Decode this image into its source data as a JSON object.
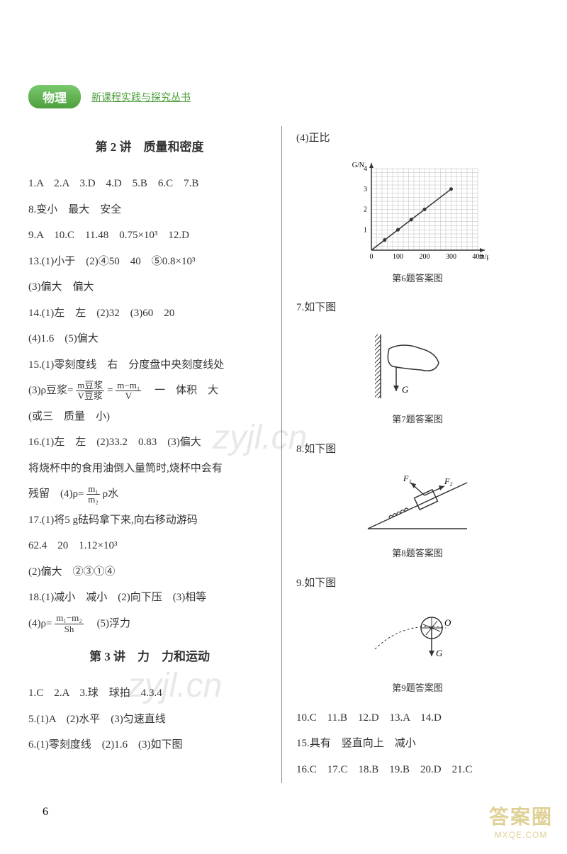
{
  "header": {
    "subject": "物理",
    "series": "新课程实践与探究丛书"
  },
  "left": {
    "section2_title": "第 2 讲　质量和密度",
    "l1": "1.A　2.A　3.D　4.D　5.B　6.C　7.B",
    "l2": "8.变小　最大　安全",
    "l3": "9.A　10.C　11.48　0.75×10³　12.D",
    "l4": "13.(1)小于　(2)④50　40　⑤0.8×10³",
    "l5": "(3)偏大　偏大",
    "l6": "14.(1)左　左　(2)32　(3)60　20",
    "l7": "(4)1.6　(5)偏大",
    "l8": "15.(1)零刻度线　右　分度盘中央刻度线处",
    "l9a": "(3)ρ豆浆=",
    "frac1_num": "m豆浆",
    "frac1_den": "V豆浆",
    "l9b": "=",
    "frac2_num": "m−m₁",
    "frac2_den": "V",
    "l9c": "　一　体积　大",
    "l10": "(或三　质量　小)",
    "l11": "16.(1)左　左　(2)33.2　0.83　(3)偏大",
    "l12": "将烧杯中的食用油倒入量筒时,烧杯中会有",
    "l13a": "残留　(4)ρ=",
    "frac3_num": "m₁",
    "frac3_den": "m₂",
    "l13b": "ρ水",
    "l14": "17.(1)将5 g砝码拿下来,向右移动游码",
    "l15": "62.4　20　1.12×10³",
    "l16": "(2)偏大　②③①④",
    "l17": "18.(1)减小　减小　(2)向下压　(3)相等",
    "l18a": "(4)ρ=",
    "frac4_num": "m₁−m₂",
    "frac4_den": "Sh",
    "l18b": "　(5)浮力",
    "section3_title": "第 3 讲　力　力和运动",
    "l19": "1.C　2.A　3.球　球拍　4.3.4",
    "l20": "5.(1)A　(2)水平　(3)匀速直线",
    "l21": "6.(1)零刻度线　(2)1.6　(3)如下图"
  },
  "right": {
    "r1": "(4)正比",
    "fig6_caption": "第6题答案图",
    "r2": "7.如下图",
    "fig7_caption": "第7题答案图",
    "r3": "8.如下图",
    "fig8_caption": "第8题答案图",
    "r4": "9.如下图",
    "fig9_caption": "第9题答案图",
    "r5": "10.C　11.B　12.D　13.A　14.D",
    "r6": "15.具有　竖直向上　减小",
    "r7": "16.C　17.C　18.B　19.B　20.D　21.C"
  },
  "chart6": {
    "x_label": "m/g",
    "y_label": "G/N",
    "x_ticks": [
      "0",
      "100",
      "200",
      "300",
      "400"
    ],
    "y_ticks": [
      "1",
      "2",
      "3",
      "4"
    ],
    "points": [
      [
        50,
        0.5
      ],
      [
        100,
        1
      ],
      [
        150,
        1.5
      ],
      [
        200,
        2
      ],
      [
        300,
        3
      ]
    ],
    "colors": {
      "line": "#333333",
      "grid": "#bbbbbb",
      "axis": "#333333"
    }
  },
  "page_number": "6",
  "watermark": {
    "logo": "答案圈",
    "url": "MXQE.COM",
    "mid": "zyjl.cn"
  }
}
